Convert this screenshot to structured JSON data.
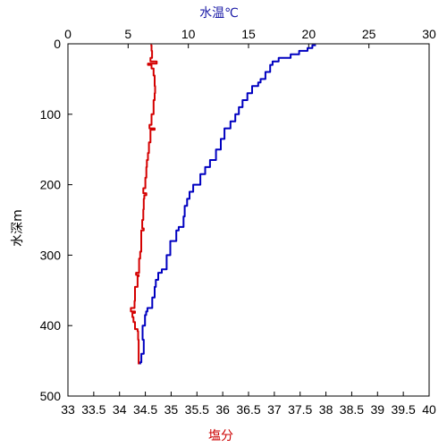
{
  "chart_data": {
    "type": "line",
    "title": "",
    "top_axis": {
      "label": "水温℃",
      "label_color": "#1a1aa6",
      "range": [
        0,
        30
      ],
      "ticks": [
        "0",
        "5",
        "10",
        "15",
        "20",
        "25",
        "30"
      ]
    },
    "bottom_axis": {
      "label": "塩分",
      "label_color": "#cc0000",
      "range": [
        33,
        40
      ],
      "ticks": [
        "33",
        "33.5",
        "34",
        "34.5",
        "35",
        "35.5",
        "36",
        "36.5",
        "37",
        "37.5",
        "38",
        "38.5",
        "39",
        "39.5",
        "40"
      ]
    },
    "left_axis": {
      "label": "水深m",
      "range": [
        0,
        500
      ],
      "inverted": true,
      "ticks": [
        "0",
        "100",
        "200",
        "300",
        "400",
        "500"
      ]
    },
    "grid": false,
    "series": [
      {
        "color": "#0000c0",
        "x_axis": "top",
        "points": [
          [
            20.6,
            2
          ],
          [
            20.3,
            6
          ],
          [
            19.9,
            10
          ],
          [
            19.2,
            15
          ],
          [
            18.5,
            20
          ],
          [
            17.5,
            25
          ],
          [
            17.0,
            30
          ],
          [
            16.8,
            40
          ],
          [
            16.4,
            50
          ],
          [
            16.0,
            55
          ],
          [
            15.8,
            60
          ],
          [
            15.3,
            70
          ],
          [
            14.9,
            80
          ],
          [
            14.5,
            90
          ],
          [
            14.2,
            100
          ],
          [
            13.9,
            110
          ],
          [
            13.5,
            120
          ],
          [
            13.0,
            135
          ],
          [
            12.7,
            150
          ],
          [
            12.3,
            165
          ],
          [
            11.8,
            175
          ],
          [
            11.4,
            185
          ],
          [
            11.0,
            200
          ],
          [
            10.4,
            210
          ],
          [
            10.1,
            220
          ],
          [
            9.9,
            230
          ],
          [
            9.7,
            245
          ],
          [
            9.6,
            260
          ],
          [
            9.2,
            265
          ],
          [
            9.0,
            280
          ],
          [
            8.5,
            300
          ],
          [
            8.2,
            320
          ],
          [
            7.8,
            325
          ],
          [
            7.5,
            335
          ],
          [
            7.3,
            345
          ],
          [
            7.2,
            360
          ],
          [
            7.0,
            375
          ],
          [
            6.6,
            380
          ],
          [
            6.5,
            385
          ],
          [
            6.4,
            400
          ],
          [
            6.2,
            420
          ],
          [
            6.3,
            440
          ],
          [
            6.1,
            452
          ],
          [
            6.0,
            455
          ]
        ]
      },
      {
        "color": "#d40000",
        "x_axis": "bottom",
        "points": [
          [
            34.6,
            2
          ],
          [
            34.62,
            10
          ],
          [
            34.63,
            20
          ],
          [
            34.6,
            25
          ],
          [
            34.72,
            28
          ],
          [
            34.55,
            30
          ],
          [
            34.62,
            35
          ],
          [
            34.66,
            45
          ],
          [
            34.68,
            60
          ],
          [
            34.69,
            70
          ],
          [
            34.68,
            80
          ],
          [
            34.66,
            100
          ],
          [
            34.62,
            115
          ],
          [
            34.58,
            120
          ],
          [
            34.68,
            122
          ],
          [
            34.6,
            125
          ],
          [
            34.6,
            140
          ],
          [
            34.57,
            155
          ],
          [
            34.55,
            165
          ],
          [
            34.53,
            175
          ],
          [
            34.52,
            190
          ],
          [
            34.5,
            205
          ],
          [
            34.46,
            212
          ],
          [
            34.52,
            215
          ],
          [
            34.48,
            220
          ],
          [
            34.47,
            235
          ],
          [
            34.46,
            250
          ],
          [
            34.44,
            262
          ],
          [
            34.47,
            265
          ],
          [
            34.42,
            275
          ],
          [
            34.42,
            295
          ],
          [
            34.4,
            305
          ],
          [
            34.38,
            325
          ],
          [
            34.32,
            328
          ],
          [
            34.37,
            330
          ],
          [
            34.35,
            345
          ],
          [
            34.3,
            365
          ],
          [
            34.29,
            375
          ],
          [
            34.22,
            380
          ],
          [
            34.3,
            382
          ],
          [
            34.25,
            388
          ],
          [
            34.27,
            395
          ],
          [
            34.3,
            405
          ],
          [
            34.35,
            408
          ],
          [
            34.36,
            420
          ],
          [
            34.37,
            440
          ],
          [
            34.37,
            455
          ]
        ]
      }
    ]
  }
}
